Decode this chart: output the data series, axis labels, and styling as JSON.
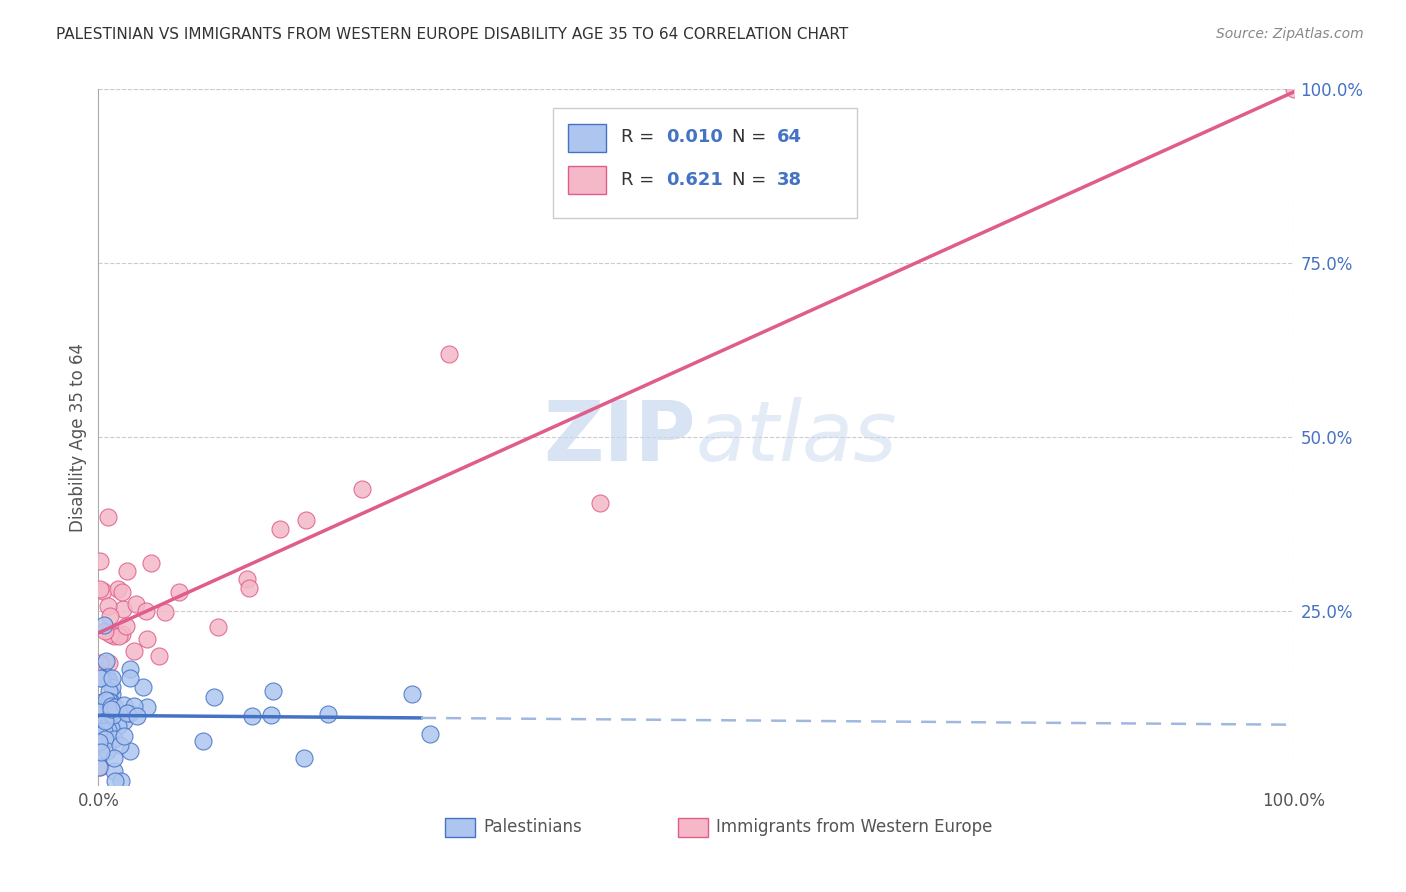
{
  "title": "PALESTINIAN VS IMMIGRANTS FROM WESTERN EUROPE DISABILITY AGE 35 TO 64 CORRELATION CHART",
  "source": "Source: ZipAtlas.com",
  "ylabel": "Disability Age 35 to 64",
  "watermark": "ZIPatlas",
  "legend1_color": "#aec6ef",
  "legend2_color": "#f4b8c8",
  "line1_color": "#4472c4",
  "line2_color": "#e05c8a",
  "scatter1_color": "#aec6ef",
  "scatter2_color": "#f4b8c8",
  "scatter1_edge": "#4472c4",
  "scatter2_edge": "#e05c8a",
  "ytick_color": "#4472c4",
  "R1": 0.01,
  "N1": 64,
  "R2": 0.621,
  "N2": 38,
  "legend_text_color": "#333333",
  "legend_value_color": "#4472c4",
  "background_color": "#ffffff",
  "grid_color": "#cccccc"
}
